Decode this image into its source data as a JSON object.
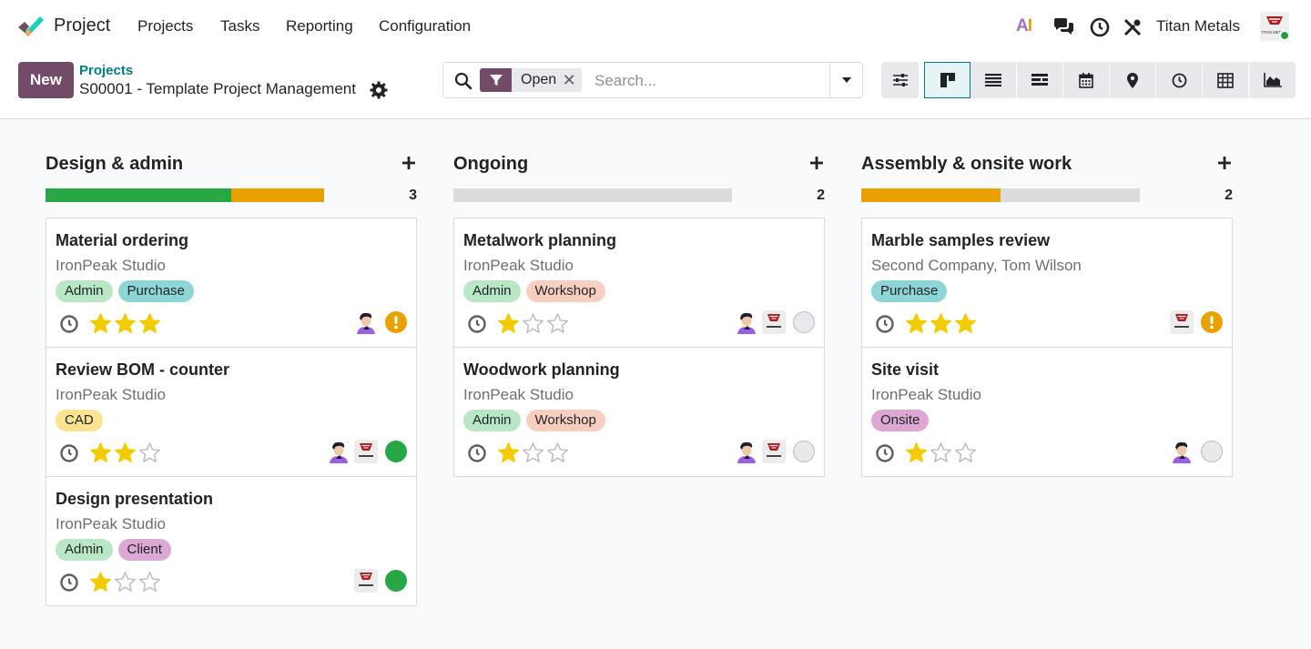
{
  "app": {
    "name": "Project",
    "menu": [
      "Projects",
      "Tasks",
      "Reporting",
      "Configuration"
    ],
    "ai_label_a": "A",
    "ai_label_i": "I",
    "company": "Titan Metals",
    "avatar_text": "TITAN METALS"
  },
  "control": {
    "new_label": "New",
    "breadcrumb_parent": "Projects",
    "breadcrumb_current": "S00001 - Template Project Management"
  },
  "search": {
    "facet_label": "Open",
    "remove_glyph": "✕",
    "placeholder": "Search..."
  },
  "views": [
    "settings",
    "kanban",
    "list",
    "gantt",
    "calendar",
    "map",
    "activity",
    "pivot",
    "graph"
  ],
  "active_view": "kanban",
  "colors": {
    "brand": "#714b67",
    "link": "#017e84",
    "done": "#28a745",
    "blocked": "#e9a100",
    "star": "#f3cc00",
    "tag_admin": "#b9e6c5",
    "tag_purchase": "#8ed6d6",
    "tag_workshop": "#f7cfc0",
    "tag_cad": "#fbe38f",
    "tag_client": "#dea8d4",
    "tag_onsite": "#dea8d4"
  },
  "columns": [
    {
      "title": "Design & admin",
      "count": "3",
      "progress": {
        "done": 0.667,
        "blocked": 0.333
      },
      "cards": [
        {
          "title": "Material ordering",
          "customer": "IronPeak Studio",
          "tags": [
            {
              "label": "Admin",
              "kind": "admin"
            },
            {
              "label": "Purchase",
              "kind": "purchase"
            }
          ],
          "priority": 3,
          "assignees": [
            "person"
          ],
          "status": "blocked"
        },
        {
          "title": "Review BOM - counter",
          "customer": "IronPeak Studio",
          "tags": [
            {
              "label": "CAD",
              "kind": "cad"
            }
          ],
          "priority": 2,
          "assignees": [
            "person",
            "company"
          ],
          "status": "done"
        },
        {
          "title": "Design presentation",
          "customer": "IronPeak Studio",
          "tags": [
            {
              "label": "Admin",
              "kind": "admin"
            },
            {
              "label": "Client",
              "kind": "client"
            }
          ],
          "priority": 1,
          "assignees": [
            "company"
          ],
          "status": "done"
        }
      ]
    },
    {
      "title": "Ongoing",
      "count": "2",
      "progress": {
        "done": 0,
        "blocked": 0
      },
      "cards": [
        {
          "title": "Metalwork planning",
          "customer": "IronPeak Studio",
          "tags": [
            {
              "label": "Admin",
              "kind": "admin"
            },
            {
              "label": "Workshop",
              "kind": "workshop"
            }
          ],
          "priority": 1,
          "assignees": [
            "person",
            "company"
          ],
          "status": "normal"
        },
        {
          "title": "Woodwork planning",
          "customer": "IronPeak Studio",
          "tags": [
            {
              "label": "Admin",
              "kind": "admin"
            },
            {
              "label": "Workshop",
              "kind": "workshop"
            }
          ],
          "priority": 1,
          "assignees": [
            "person",
            "company"
          ],
          "status": "normal"
        }
      ]
    },
    {
      "title": "Assembly & onsite work",
      "count": "2",
      "progress": {
        "done": 0,
        "blocked": 0.5
      },
      "cards": [
        {
          "title": "Marble samples review",
          "customer": "Second Company, Tom Wilson",
          "tags": [
            {
              "label": "Purchase",
              "kind": "purchase"
            }
          ],
          "priority": 3,
          "assignees": [
            "company"
          ],
          "status": "blocked"
        },
        {
          "title": "Site visit",
          "customer": "IronPeak Studio",
          "tags": [
            {
              "label": "Onsite",
              "kind": "onsite"
            }
          ],
          "priority": 1,
          "assignees": [
            "person"
          ],
          "status": "normal"
        }
      ]
    }
  ]
}
